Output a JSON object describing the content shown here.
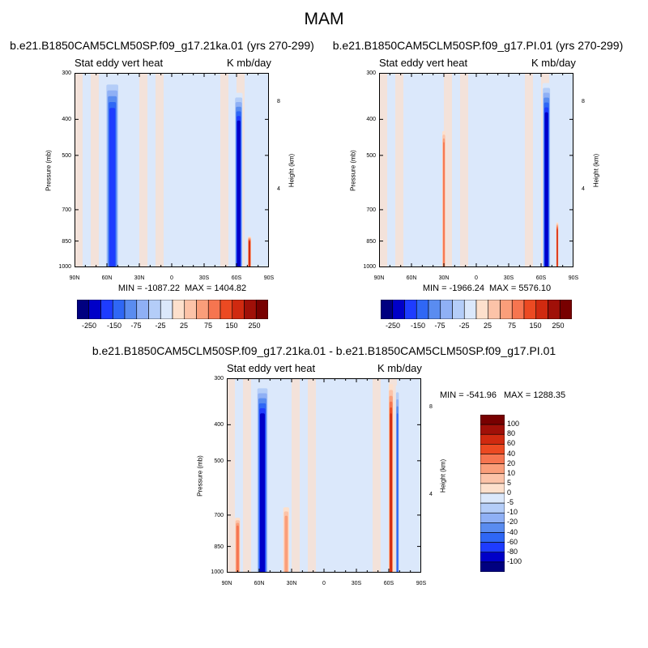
{
  "page_title": "MAM",
  "colors": {
    "diverging": [
      "#000080",
      "#0000c8",
      "#1e3cff",
      "#2f67f5",
      "#5a8cf0",
      "#8fb0f5",
      "#b4cdf8",
      "#dbe8fb",
      "#fde0cc",
      "#fcc3a8",
      "#fa9e7a",
      "#f67550",
      "#ec4a22",
      "#d02a10",
      "#a01008",
      "#780000"
    ]
  },
  "chart_data": [
    {
      "type": "heatmap",
      "id": "left",
      "title": "b.e21.B1850CAM5CLM50SP.f09_g17.21ka.01 (yrs 270-299)",
      "left_string": "Stat eddy vert heat",
      "right_string": "K mb/day",
      "ylabel": "Pressure (mb)",
      "ylabel_right": "Height (km)",
      "yticks": [
        "300",
        "400",
        "500",
        "700",
        "850",
        "1000"
      ],
      "yticks_right": [
        "8",
        "4"
      ],
      "xticks": [
        "90N",
        "60N",
        "30N",
        "0",
        "30S",
        "60S",
        "90S"
      ],
      "ylim": [
        1000,
        300
      ],
      "xlim": [
        "90N",
        "90S"
      ],
      "min_label": "MIN = -1087.22",
      "max_label": "MAX = 1404.82",
      "colorbar_labels": [
        "-250",
        "-150",
        "-75",
        "-25",
        "25",
        "75",
        "150",
        "250"
      ],
      "features": [
        {
          "lat": 55,
          "p_top": 300,
          "p_bottom": 1000,
          "width": 12,
          "sign": -1,
          "level": 6
        },
        {
          "lat": -62,
          "p_top": 330,
          "p_bottom": 1000,
          "width": 7,
          "sign": -1,
          "level": 7
        },
        {
          "lat": -72,
          "p_top": 820,
          "p_bottom": 1000,
          "width": 3,
          "sign": 1,
          "level": 6
        }
      ]
    },
    {
      "type": "heatmap",
      "id": "right",
      "title": "b.e21.B1850CAM5CLM50SP.f09_g17.PI.01 (yrs 270-299)",
      "left_string": "Stat eddy vert heat",
      "right_string": "K mb/day",
      "ylabel": "Pressure (mb)",
      "ylabel_right": "Height (km)",
      "yticks": [
        "300",
        "400",
        "500",
        "700",
        "850",
        "1000"
      ],
      "yticks_right": [
        "8",
        "4"
      ],
      "xticks": [
        "90N",
        "60N",
        "30N",
        "0",
        "30S",
        "60S",
        "90S"
      ],
      "ylim": [
        1000,
        300
      ],
      "xlim": [
        "90N",
        "90S"
      ],
      "min_label": "MIN = -1966.24",
      "max_label": "MAX = 5576.10",
      "colorbar_labels": [
        "-250",
        "-150",
        "-75",
        "-25",
        "25",
        "75",
        "150",
        "250"
      ],
      "features": [
        {
          "lat": 30,
          "p_top": 420,
          "p_bottom": 700,
          "width": 3,
          "sign": 1,
          "level": 4
        },
        {
          "lat": -65,
          "p_top": 310,
          "p_bottom": 1000,
          "width": 7,
          "sign": -1,
          "level": 7
        },
        {
          "lat": -75,
          "p_top": 750,
          "p_bottom": 1000,
          "width": 2,
          "sign": 1,
          "level": 6
        }
      ]
    },
    {
      "type": "heatmap",
      "id": "diff",
      "title": "b.e21.B1850CAM5CLM50SP.f09_g17.21ka.01 - b.e21.B1850CAM5CLM50SP.f09_g17.PI.01",
      "left_string": "Stat eddy vert heat",
      "right_string": "K mb/day",
      "ylabel": "Pressure (mb)",
      "ylabel_right": "Height (km)",
      "yticks": [
        "300",
        "400",
        "500",
        "700",
        "850",
        "1000"
      ],
      "yticks_right": [
        "8",
        "4"
      ],
      "xticks": [
        "90N",
        "60N",
        "30N",
        "0",
        "30S",
        "60S",
        "90S"
      ],
      "ylim": [
        1000,
        300
      ],
      "xlim": [
        "90N",
        "90S"
      ],
      "min_label": "MIN = -541.96",
      "max_label": "MAX = 1288.35",
      "colorbar_labels": [
        "100",
        "80",
        "60",
        "40",
        "20",
        "10",
        "5",
        "0",
        "-5",
        "-10",
        "-20",
        "-40",
        "-60",
        "-80",
        "-100"
      ],
      "features": [
        {
          "lat": 57,
          "p_top": 300,
          "p_bottom": 1000,
          "width": 10,
          "sign": -1,
          "level": 7
        },
        {
          "lat": 80,
          "p_top": 700,
          "p_bottom": 1000,
          "width": 5,
          "sign": 1,
          "level": 4
        },
        {
          "lat": 35,
          "p_top": 650,
          "p_bottom": 1000,
          "width": 6,
          "sign": 1,
          "level": 3
        },
        {
          "lat": -62,
          "p_top": 300,
          "p_bottom": 1000,
          "width": 4,
          "sign": 1,
          "level": 6
        },
        {
          "lat": -68,
          "p_top": 300,
          "p_bottom": 1000,
          "width": 3,
          "sign": -1,
          "level": 5
        }
      ]
    }
  ]
}
